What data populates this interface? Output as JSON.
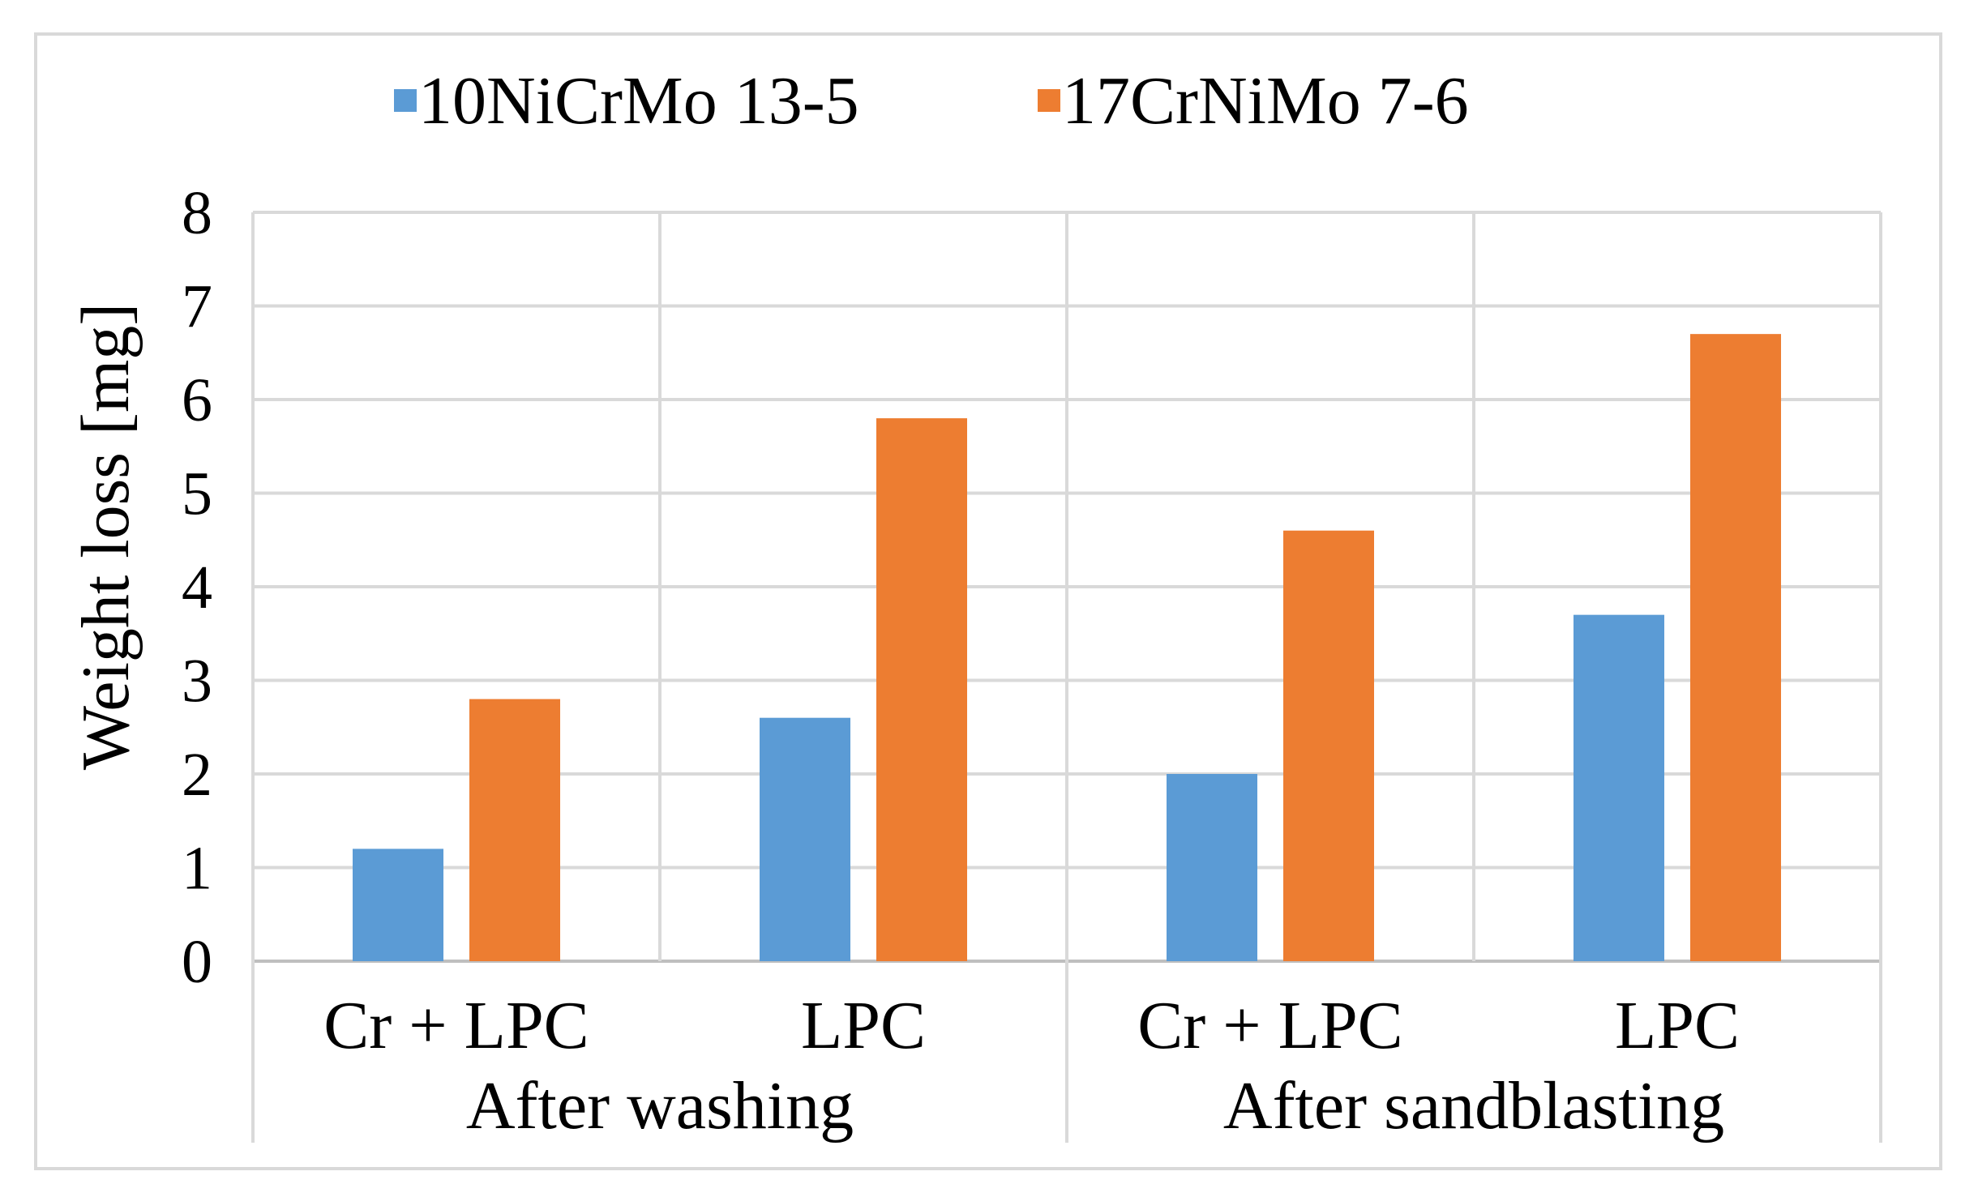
{
  "chart_data": {
    "type": "bar",
    "title": "",
    "ylabel": "Weight loss [mg]",
    "xlabel": "",
    "ylim": [
      0,
      8
    ],
    "yticks": [
      0,
      1,
      2,
      3,
      4,
      5,
      6,
      7,
      8
    ],
    "grid": true,
    "legend_position": "top",
    "groups": [
      {
        "label": "After washing",
        "categories": [
          "Cr + LPC",
          "LPC"
        ]
      },
      {
        "label": "After sandblasting",
        "categories": [
          "Cr + LPC",
          "LPC"
        ]
      }
    ],
    "categories": [
      "Cr + LPC",
      "LPC",
      "Cr + LPC",
      "LPC"
    ],
    "series": [
      {
        "name": "10NiCrMo 13-5",
        "color": "#5b9bd5",
        "values": [
          1.2,
          2.6,
          2.0,
          3.7
        ]
      },
      {
        "name": "17CrNiMo 7-6",
        "color": "#ed7d31",
        "values": [
          2.8,
          5.8,
          4.6,
          6.7
        ]
      }
    ]
  }
}
